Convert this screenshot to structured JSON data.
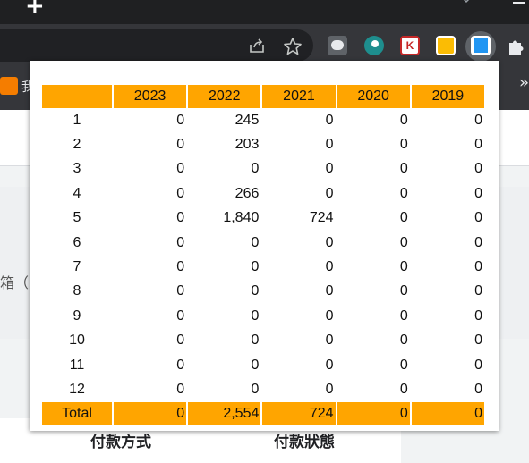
{
  "browser": {
    "bookmark_item_label": "我",
    "bookmarks_overflow": "»",
    "toolbar_icons": [
      "share-icon",
      "bookmark-star-icon",
      "line-extension-icon",
      "palette-extension-icon",
      "k-extension-icon",
      "yellow-extension-icon",
      "blue-extension-icon",
      "puzzle-extensions-icon"
    ]
  },
  "page": {
    "box_text": "箱（",
    "footer_labels": [
      "付款方式",
      "付款狀態"
    ]
  },
  "report": {
    "header_color": "#ffa500",
    "columns": [
      "",
      "2023",
      "2022",
      "2021",
      "2020",
      "2019"
    ],
    "rows": [
      {
        "month": "1",
        "values": [
          "0",
          "245",
          "0",
          "0",
          "0"
        ]
      },
      {
        "month": "2",
        "values": [
          "0",
          "203",
          "0",
          "0",
          "0"
        ]
      },
      {
        "month": "3",
        "values": [
          "0",
          "0",
          "0",
          "0",
          "0"
        ]
      },
      {
        "month": "4",
        "values": [
          "0",
          "266",
          "0",
          "0",
          "0"
        ]
      },
      {
        "month": "5",
        "values": [
          "0",
          "1,840",
          "724",
          "0",
          "0"
        ]
      },
      {
        "month": "6",
        "values": [
          "0",
          "0",
          "0",
          "0",
          "0"
        ]
      },
      {
        "month": "7",
        "values": [
          "0",
          "0",
          "0",
          "0",
          "0"
        ]
      },
      {
        "month": "8",
        "values": [
          "0",
          "0",
          "0",
          "0",
          "0"
        ]
      },
      {
        "month": "9",
        "values": [
          "0",
          "0",
          "0",
          "0",
          "0"
        ]
      },
      {
        "month": "10",
        "values": [
          "0",
          "0",
          "0",
          "0",
          "0"
        ]
      },
      {
        "month": "11",
        "values": [
          "0",
          "0",
          "0",
          "0",
          "0"
        ]
      },
      {
        "month": "12",
        "values": [
          "0",
          "0",
          "0",
          "0",
          "0"
        ]
      }
    ],
    "total": {
      "label": "Total",
      "values": [
        "0",
        "2,554",
        "724",
        "0",
        "0"
      ]
    }
  }
}
